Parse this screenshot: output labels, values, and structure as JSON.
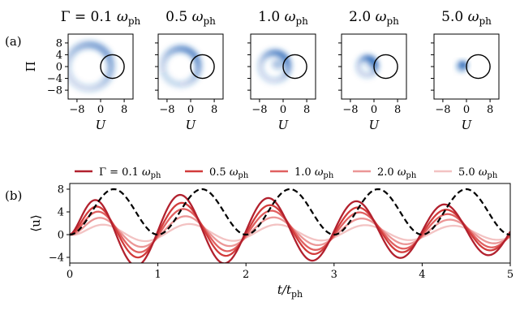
{
  "figure": {
    "panel_a_label": "(a)",
    "panel_b_label": "(b)"
  },
  "chart_data": [
    {
      "type": "heatmap",
      "panel": "(a)",
      "xlabel": "U",
      "ylabel": "Π",
      "xlim": [
        -11,
        11
      ],
      "ylim": [
        -11,
        11
      ],
      "xticks": [
        -8,
        0,
        8
      ],
      "yticks": [
        8,
        4,
        0,
        -4,
        -8
      ],
      "tick_labels_x": [
        "−8",
        "0",
        "8"
      ],
      "tick_labels_y": [
        "8",
        "4",
        "0",
        "−4",
        "−8"
      ],
      "reference_circle": {
        "center_u": 4,
        "center_pi": 0,
        "radius": 4
      },
      "colormap_color": "#1f5fb4",
      "subplots": [
        {
          "title_prefix": "Γ = ",
          "title_value": "0.1",
          "title_unit": "ω",
          "title_unit_sub": "ph",
          "gamma": 0.1
        },
        {
          "title_prefix": "",
          "title_value": "0.5",
          "title_unit": "ω",
          "title_unit_sub": "ph",
          "gamma": 0.5
        },
        {
          "title_prefix": "",
          "title_value": "1.0",
          "title_unit": "ω",
          "title_unit_sub": "ph",
          "gamma": 1.0
        },
        {
          "title_prefix": "",
          "title_value": "2.0",
          "title_unit": "ω",
          "title_unit_sub": "ph",
          "gamma": 2.0
        },
        {
          "title_prefix": "",
          "title_value": "5.0",
          "title_unit": "ω",
          "title_unit_sub": "ph",
          "gamma": 5.0
        }
      ]
    },
    {
      "type": "line",
      "panel": "(b)",
      "xlabel": "t/t",
      "xlabel_sub": "ph",
      "ylabel": "⟨u⟩",
      "xlim": [
        0,
        5
      ],
      "ylim": [
        -5,
        9
      ],
      "xticks": [
        0,
        1,
        2,
        3,
        4,
        5
      ],
      "yticks": [
        8,
        4,
        0,
        -4
      ],
      "tick_labels_x": [
        "0",
        "1",
        "2",
        "3",
        "4",
        "5"
      ],
      "tick_labels_y": [
        "8",
        "4",
        "0",
        "−4"
      ],
      "legend_position": "top",
      "reference": {
        "style": "dashed",
        "color": "#000000",
        "amplitude": 4,
        "offset": 4,
        "period": 1
      },
      "series": [
        {
          "name_prefix": "Γ = ",
          "name_value": "0.1",
          "name_unit": "ω",
          "name_unit_sub": "ph",
          "gamma": 0.1,
          "color": "#b2212e",
          "amplitude_start": 6.8,
          "amplitude_end": 4.2,
          "offset_start": 0.9,
          "offset_end": 0.7
        },
        {
          "name_prefix": "",
          "name_value": "0.5",
          "name_unit": "ω",
          "name_unit_sub": "ph",
          "gamma": 0.5,
          "color": "#d23b3b",
          "amplitude_start": 5.2,
          "amplitude_end": 3.4,
          "offset_start": 0.9,
          "offset_end": 0.7
        },
        {
          "name_prefix": "",
          "name_value": "1.0",
          "name_unit": "ω",
          "name_unit_sub": "ph",
          "gamma": 1.0,
          "color": "#e06060",
          "amplitude_start": 4.1,
          "amplitude_end": 2.8,
          "offset_start": 0.8,
          "offset_end": 0.6
        },
        {
          "name_prefix": "",
          "name_value": "2.0",
          "name_unit": "ω",
          "name_unit_sub": "ph",
          "gamma": 2.0,
          "color": "#eb9696",
          "amplitude_start": 2.9,
          "amplitude_end": 2.0,
          "offset_start": 0.6,
          "offset_end": 0.5
        },
        {
          "name_prefix": "",
          "name_value": "5.0",
          "name_unit": "ω",
          "name_unit_sub": "ph",
          "gamma": 5.0,
          "color": "#f3c3c3",
          "amplitude_start": 1.6,
          "amplitude_end": 1.2,
          "offset_start": 0.4,
          "offset_end": 0.3
        }
      ]
    }
  ]
}
